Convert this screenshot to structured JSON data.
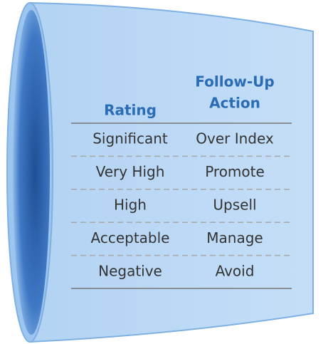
{
  "header": {
    "rating": "Rating",
    "action": [
      "Follow-Up",
      "Action"
    ]
  },
  "rows": [
    [
      "Significant",
      "Over Index"
    ],
    [
      "Very High",
      "Promote"
    ],
    [
      "High",
      "Upsell"
    ],
    [
      "Acceptable",
      "Manage"
    ],
    [
      "Negative",
      "Avoid"
    ]
  ]
}
